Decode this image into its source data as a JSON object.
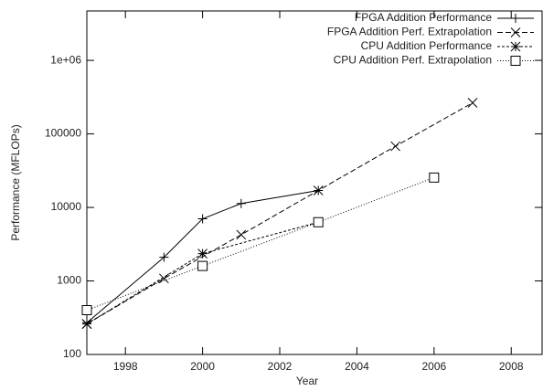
{
  "chart_data": {
    "type": "line",
    "xlabel": "Year",
    "ylabel": "Performance (MFLOPs)",
    "xlim": [
      1997,
      2008.8
    ],
    "xticks": [
      1998,
      2000,
      2002,
      2004,
      2006,
      2008
    ],
    "ylim": [
      100,
      4700000
    ],
    "log_y": true,
    "yticks": [
      100,
      1000,
      10000,
      100000,
      {
        "value": 1000000,
        "label": "1e+06"
      }
    ],
    "legend": "top-right",
    "series": [
      {
        "name": "FPGA Addition Performance",
        "color": "#000000",
        "dash": "none",
        "marker": "plus",
        "x": [
          1997,
          1999,
          2000,
          2001,
          2003
        ],
        "values": [
          270,
          2100,
          7000,
          11300,
          17000
        ]
      },
      {
        "name": "FPGA Addition Perf. Extrapolation",
        "color": "#000000",
        "dash": "6,3",
        "marker": "cross",
        "x": [
          1997,
          1999,
          2001,
          2003,
          2005,
          2007
        ],
        "values": [
          260,
          1080,
          4250,
          17000,
          68000,
          265000
        ]
      },
      {
        "name": "CPU Addition Performance",
        "color": "#000000",
        "dash": "3,2",
        "marker": "star",
        "x": [
          1997,
          2000,
          2003
        ],
        "values": [
          260,
          2350,
          6300
        ]
      },
      {
        "name": "CPU Addition Perf. Extrapolation",
        "color": "#000000",
        "dash": "1,2",
        "marker": "square",
        "x": [
          1997,
          2000,
          2003,
          2006
        ],
        "values": [
          400,
          1600,
          6300,
          25500
        ]
      }
    ]
  }
}
